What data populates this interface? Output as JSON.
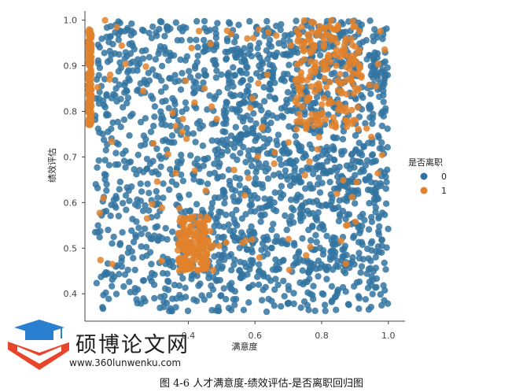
{
  "chart_data": {
    "type": "scatter",
    "title": "",
    "xlabel": "满意度",
    "ylabel": "绩效评估",
    "xlim": [
      0.09,
      1.05
    ],
    "ylim": [
      0.34,
      1.02
    ],
    "x_ticks": [
      "0.4",
      "0.6",
      "0.8",
      "1.0"
    ],
    "x_tick_values": [
      0.4,
      0.6,
      0.8,
      1.0
    ],
    "y_ticks": [
      "0.4",
      "0.5",
      "0.6",
      "0.7",
      "0.8",
      "0.9",
      "1.0"
    ],
    "y_tick_values": [
      0.4,
      0.5,
      0.6,
      0.7,
      0.8,
      0.9,
      1.0
    ],
    "grid": false,
    "legend": {
      "title": "是否离职",
      "placement": "right",
      "entries": [
        {
          "label": "0",
          "color": "#3274a1"
        },
        {
          "label": "1",
          "color": "#e1812c"
        }
      ]
    },
    "series": [
      {
        "name": "0",
        "color": "#3274a1",
        "clusters": [
          {
            "x": [
              0.5,
              1.0
            ],
            "y": [
              0.45,
              1.0
            ],
            "density": "dense"
          },
          {
            "x": [
              0.12,
              0.5
            ],
            "y": [
              0.36,
              1.0
            ],
            "density": "medium"
          },
          {
            "x": [
              0.5,
              1.0
            ],
            "y": [
              0.36,
              0.45
            ],
            "density": "medium"
          }
        ]
      },
      {
        "name": "1",
        "color": "#e1812c",
        "clusters": [
          {
            "x": [
              0.1,
              0.11
            ],
            "y": [
              0.77,
              0.98
            ],
            "density": "dense"
          },
          {
            "x": [
              0.37,
              0.46
            ],
            "y": [
              0.45,
              0.57
            ],
            "density": "dense"
          },
          {
            "x": [
              0.72,
              0.92
            ],
            "y": [
              0.76,
              1.0
            ],
            "density": "dense"
          },
          {
            "x": [
              0.12,
              1.0
            ],
            "y": [
              0.45,
              1.0
            ],
            "density": "sparse"
          }
        ]
      }
    ]
  },
  "watermark": {
    "name": "硕博论文网",
    "url": "www.360lunwenku.com",
    "logo_colors": {
      "cap": "#2b7fd1",
      "book": "#e8462a"
    }
  },
  "caption": "图 4-6    人才满意度-绩效评估-是否离职回归图"
}
